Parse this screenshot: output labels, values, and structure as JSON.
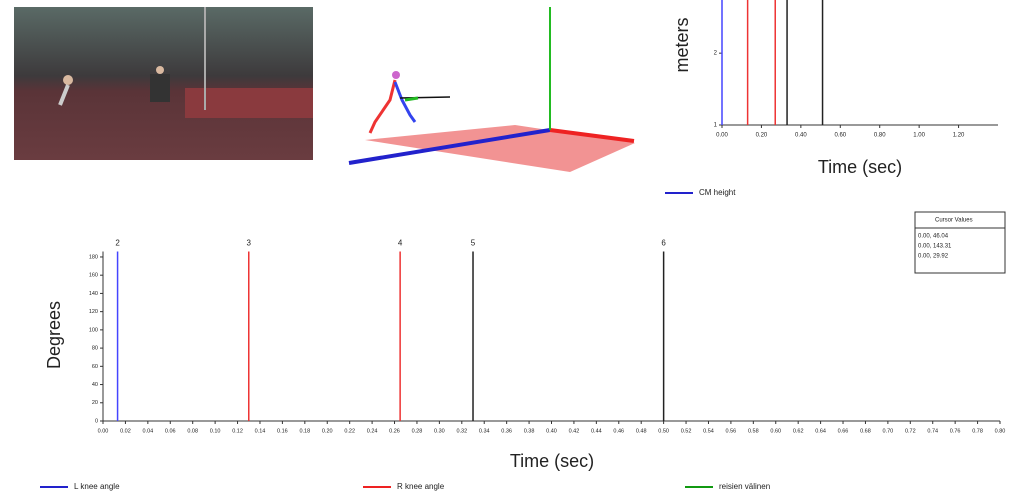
{
  "chart_data": [
    {
      "type": "line",
      "ylabel": "meters",
      "xlabel": "Time (sec)",
      "xlim": [
        0,
        1.4
      ],
      "ylim": [
        1,
        2.74
      ],
      "xticks": [
        {
          "value": 0,
          "label": "0.00"
        },
        {
          "value": 0.2,
          "label": "0.20"
        },
        {
          "value": 0.4,
          "label": "0.40"
        },
        {
          "value": 0.6,
          "label": "0.60"
        },
        {
          "value": 0.8,
          "label": "0.80"
        },
        {
          "value": 1.0,
          "label": "1.00"
        },
        {
          "value": 1.2,
          "label": "1.20"
        }
      ],
      "yticks": [
        1,
        2
      ],
      "series": [
        {
          "name": "CM height",
          "color": "#2222cc"
        }
      ],
      "markers": [
        {
          "x": 0.0,
          "color": "#4444ff"
        },
        {
          "x": 0.13,
          "color": "#ee3333"
        },
        {
          "x": 0.27,
          "color": "#ee3333"
        },
        {
          "x": 0.33,
          "color": "#222222"
        },
        {
          "x": 0.51,
          "color": "#222222"
        }
      ]
    },
    {
      "type": "line",
      "ylabel": "Degrees",
      "xlabel": "Time (sec)",
      "xlim": [
        0,
        0.8
      ],
      "ylim": [
        0,
        186
      ],
      "xticks": [
        {
          "value": 0,
          "label": "0.00"
        },
        {
          "value": 0.02,
          "label": "0.02"
        },
        {
          "value": 0.04,
          "label": "0.04"
        },
        {
          "value": 0.06,
          "label": "0.06"
        },
        {
          "value": 0.08,
          "label": "0.08"
        },
        {
          "value": 0.1,
          "label": "0.10"
        },
        {
          "value": 0.12,
          "label": "0.12"
        },
        {
          "value": 0.14,
          "label": "0.14"
        },
        {
          "value": 0.16,
          "label": "0.16"
        },
        {
          "value": 0.18,
          "label": "0.18"
        },
        {
          "value": 0.2,
          "label": "0.20"
        },
        {
          "value": 0.22,
          "label": "0.22"
        },
        {
          "value": 0.24,
          "label": "0.24"
        },
        {
          "value": 0.26,
          "label": "0.26"
        },
        {
          "value": 0.28,
          "label": "0.28"
        },
        {
          "value": 0.3,
          "label": "0.30"
        },
        {
          "value": 0.32,
          "label": "0.32"
        },
        {
          "value": 0.34,
          "label": "0.34"
        },
        {
          "value": 0.36,
          "label": "0.36"
        },
        {
          "value": 0.38,
          "label": "0.38"
        },
        {
          "value": 0.4,
          "label": "0.40"
        },
        {
          "value": 0.42,
          "label": "0.42"
        },
        {
          "value": 0.44,
          "label": "0.44"
        },
        {
          "value": 0.46,
          "label": "0.46"
        },
        {
          "value": 0.48,
          "label": "0.48"
        },
        {
          "value": 0.5,
          "label": "0.50"
        },
        {
          "value": 0.52,
          "label": "0.52"
        },
        {
          "value": 0.54,
          "label": "0.54"
        },
        {
          "value": 0.56,
          "label": "0.56"
        },
        {
          "value": 0.58,
          "label": "0.58"
        },
        {
          "value": 0.6,
          "label": "0.60"
        },
        {
          "value": 0.62,
          "label": "0.62"
        },
        {
          "value": 0.64,
          "label": "0.64"
        },
        {
          "value": 0.66,
          "label": "0.66"
        },
        {
          "value": 0.68,
          "label": "0.68"
        },
        {
          "value": 0.7,
          "label": "0.70"
        },
        {
          "value": 0.72,
          "label": "0.72"
        },
        {
          "value": 0.74,
          "label": "0.74"
        },
        {
          "value": 0.76,
          "label": "0.76"
        },
        {
          "value": 0.78,
          "label": "0.78"
        },
        {
          "value": 0.8,
          "label": "0.80"
        }
      ],
      "yticks": [
        0,
        20,
        40,
        60,
        80,
        100,
        120,
        140,
        160,
        180
      ],
      "series": [
        {
          "name": "L knee angle",
          "color": "#2222cc"
        },
        {
          "name": "R knee angle",
          "color": "#ee2222"
        },
        {
          "name": "reisien välinen",
          "color": "#119911"
        }
      ],
      "markers": [
        {
          "x": 0.013,
          "label": "2",
          "color": "#4444ff"
        },
        {
          "x": 0.13,
          "label": "3",
          "color": "#ee3333"
        },
        {
          "x": 0.265,
          "label": "4",
          "color": "#ee3333"
        },
        {
          "x": 0.33,
          "label": "5",
          "color": "#222222"
        },
        {
          "x": 0.5,
          "label": "6",
          "color": "#222222"
        }
      ]
    }
  ],
  "cursor_values": {
    "title": "Cursor Values",
    "rows": [
      {
        "text": "0.00, 46.04",
        "color": "#2222cc"
      },
      {
        "text": "0.00, 143.31",
        "color": "#ee2222"
      },
      {
        "text": "0.00, 29.92",
        "color": "#119911"
      }
    ]
  }
}
